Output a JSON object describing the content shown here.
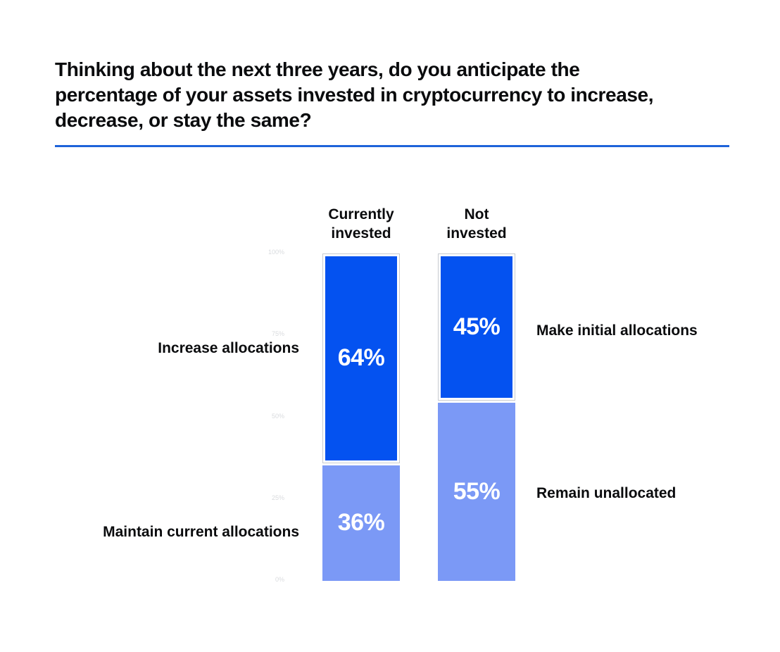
{
  "title": "Thinking about the next three years, do you anticipate the percentage of your assets invested in cryptocurrency to increase, decrease, or stay the same?",
  "colors": {
    "title_text": "#0A0B0D",
    "divider_blue": "#1E63D9",
    "bar_dark_blue": "#0452F0",
    "bar_light_blue": "#7B99F6",
    "tick_gray": "#D9DBDE",
    "segment_border": "#C7CBD0",
    "value_text": "#FFFFFF",
    "label_text": "#0A0B0D"
  },
  "chart_data": {
    "type": "bar",
    "subtype": "100-percent-stacked-columns",
    "title": "Thinking about the next three years, do you anticipate the percentage of your assets invested in cryptocurrency to increase, decrease, or stay the same?",
    "categories": [
      "Currently invested",
      "Not invested"
    ],
    "y_ticks": [
      "100%",
      "75%",
      "50%",
      "25%",
      "0%"
    ],
    "ylim": [
      0,
      100
    ],
    "grid": false,
    "legend_position": "none",
    "columns": [
      {
        "header": "Currently\ninvested",
        "segments": [
          {
            "label": "Increase allocations",
            "value": 64,
            "display": "64%",
            "tone": "dark",
            "label_side": "left"
          },
          {
            "label": "Maintain current allocations",
            "value": 36,
            "display": "36%",
            "tone": "light",
            "label_side": "left"
          }
        ]
      },
      {
        "header": "Not\ninvested",
        "segments": [
          {
            "label": "Make initial allocations",
            "value": 45,
            "display": "45%",
            "tone": "dark",
            "label_side": "right"
          },
          {
            "label": "Remain unallocated",
            "value": 55,
            "display": "55%",
            "tone": "light",
            "label_side": "right"
          }
        ]
      }
    ]
  }
}
